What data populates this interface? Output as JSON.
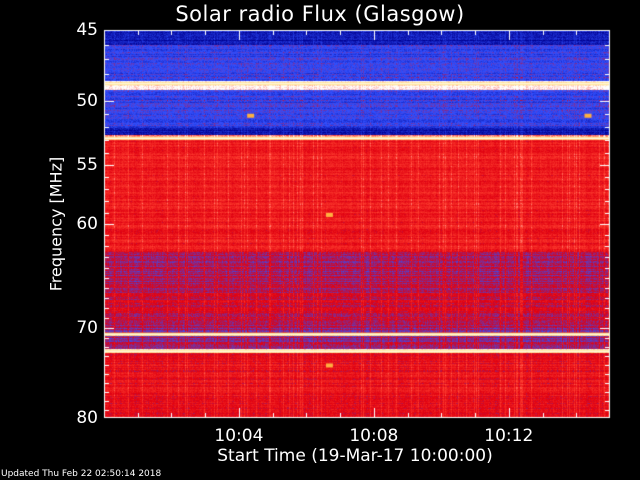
{
  "chart_data": {
    "type": "heatmap",
    "title": "Solar radio Flux (Glasgow)",
    "xlabel": "Start Time (19-Mar-17 10:00:00)",
    "ylabel": "Frequency [MHz]",
    "xlim": [
      "10:00",
      "10:15"
    ],
    "ylim": [
      45,
      80
    ],
    "y_ticks": [
      45,
      50,
      55,
      60,
      70,
      80
    ],
    "y_tick_labels": [
      "45",
      "50",
      "55",
      "60",
      "70",
      "80"
    ],
    "x_ticks": [
      "10:04",
      "10:08",
      "10:12"
    ],
    "y_scale": "log",
    "colormap": [
      "#000090",
      "#3050ff",
      "#e00010",
      "#ff4030",
      "#ffffff"
    ],
    "bands": [
      {
        "from": 45.0,
        "to": 46.0,
        "level": 0.08
      },
      {
        "from": 46.0,
        "to": 48.5,
        "level": 0.24
      },
      {
        "from": 48.5,
        "to": 49.2,
        "level": 0.95
      },
      {
        "from": 49.2,
        "to": 52.0,
        "level": 0.24
      },
      {
        "from": 52.0,
        "to": 52.6,
        "level": 0.1
      },
      {
        "from": 52.6,
        "to": 53.0,
        "level": 0.85
      },
      {
        "from": 53.0,
        "to": 62.5,
        "level": 0.6
      },
      {
        "from": 62.5,
        "to": 66.5,
        "level": 0.42
      },
      {
        "from": 66.5,
        "to": 69.5,
        "level": 0.48
      },
      {
        "from": 69.5,
        "to": 70.5,
        "level": 0.4
      },
      {
        "from": 70.5,
        "to": 70.8,
        "level": 0.92
      },
      {
        "from": 70.8,
        "to": 72.2,
        "level": 0.4
      },
      {
        "from": 72.2,
        "to": 72.7,
        "level": 0.96
      },
      {
        "from": 72.7,
        "to": 80.0,
        "level": 0.55
      }
    ],
    "bright_lines": [
      48.7,
      52.8,
      70.6,
      72.4
    ],
    "hot_spots": [
      {
        "time": "10:06:40",
        "freq": 59.2
      },
      {
        "time": "10:06:40",
        "freq": 74.0
      },
      {
        "time": "10:04:20",
        "freq": 51.1
      },
      {
        "time": "10:14:20",
        "freq": 51.1
      }
    ]
  },
  "footer": "Updated Thu Feb 22 02:50:14 2018"
}
